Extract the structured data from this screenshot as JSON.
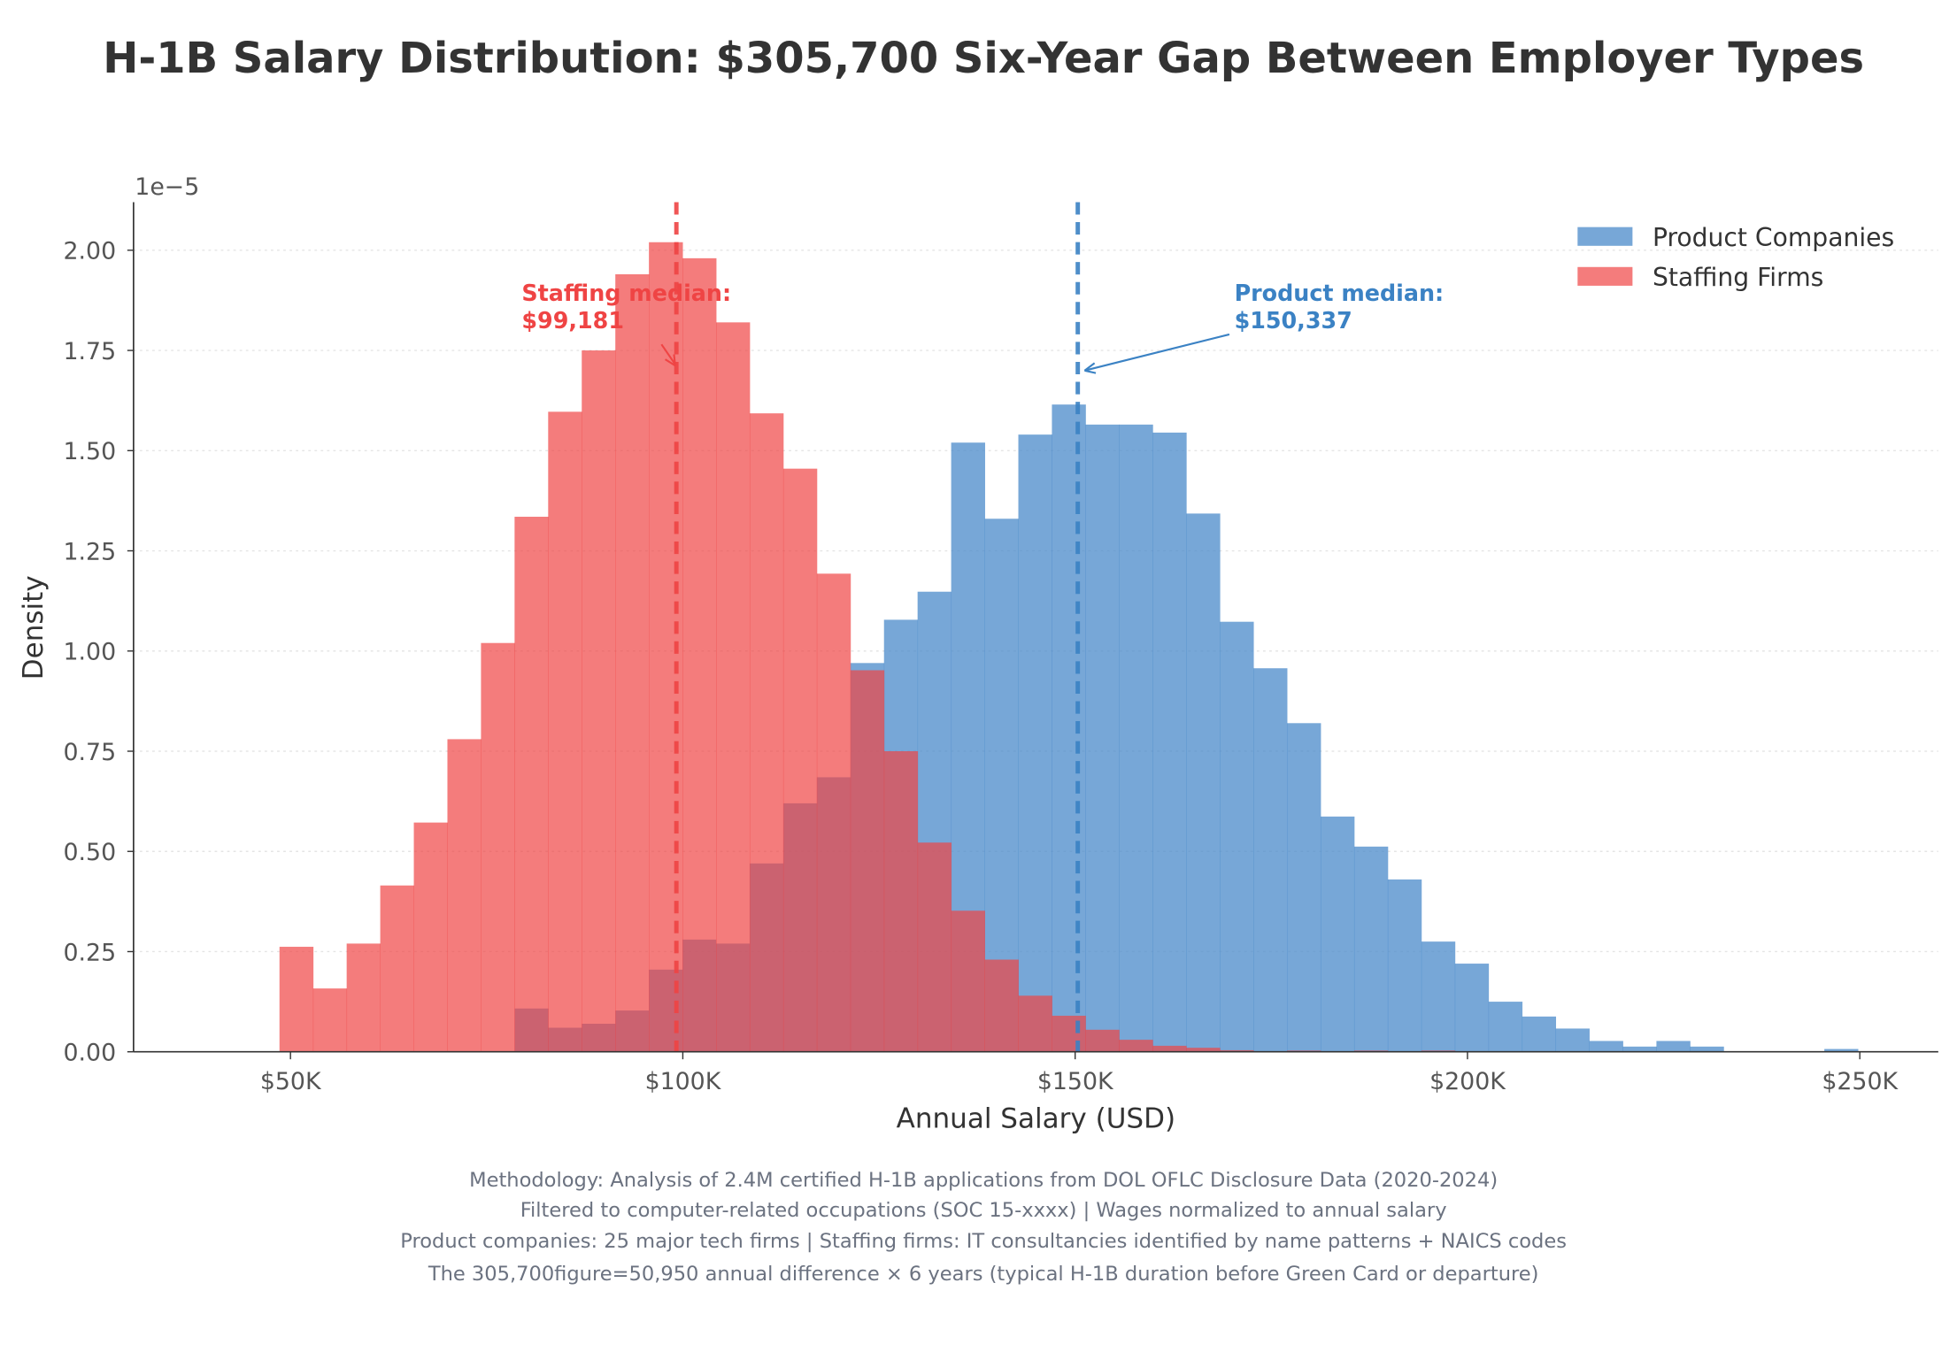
{
  "chart_data": {
    "type": "bar",
    "subtype": "overlapping-histogram",
    "title": "H-1B Salary Distribution: $305,700 Six-Year Gap Between Employer Types",
    "xlabel": "Annual Salary (USD)",
    "ylabel": "Density",
    "y_offset_label": "1e−5",
    "y_scale": 1e-05,
    "xlim": [
      30,
      260
    ],
    "ylim": [
      0,
      2.12
    ],
    "x_units": "thousand USD",
    "x_ticks": [
      50,
      100,
      150,
      200,
      250
    ],
    "x_tick_labels": [
      "$50K",
      "$100K",
      "$150K",
      "$200K",
      "$250K"
    ],
    "y_ticks": [
      0,
      0.25,
      0.5,
      0.75,
      1.0,
      1.25,
      1.5,
      1.75,
      2.0
    ],
    "y_tick_labels": [
      "0.00",
      "0.25",
      "0.50",
      "0.75",
      "1.00",
      "1.25",
      "1.50",
      "1.75",
      "2.00"
    ],
    "grid": "horizontal dotted",
    "legend_position": "top-right",
    "bin_start": 48.6,
    "bin_width": 4.28,
    "series": [
      {
        "name": "Product Companies",
        "color": "#4a8ac9",
        "start_bin": 7,
        "values": [
          0.108,
          0.06,
          0.07,
          0.103,
          0.205,
          0.28,
          0.27,
          0.47,
          0.62,
          0.685,
          0.97,
          1.078,
          1.148,
          1.52,
          1.33,
          1.54,
          1.615,
          1.565,
          1.565,
          1.545,
          1.343,
          1.073,
          0.957,
          0.82,
          0.587,
          0.512,
          0.43,
          0.275,
          0.22,
          0.125,
          0.088,
          0.058,
          0.027,
          0.013,
          0.027,
          0.013,
          0,
          0,
          0,
          0.007
        ]
      },
      {
        "name": "Staffing Firms",
        "color": "#ef4444",
        "start_bin": 0,
        "values": [
          0.262,
          0.158,
          0.27,
          0.415,
          0.572,
          0.78,
          1.02,
          1.335,
          1.597,
          1.75,
          1.94,
          2.02,
          1.98,
          1.82,
          1.593,
          1.455,
          1.193,
          0.952,
          0.75,
          0.522,
          0.352,
          0.23,
          0.14,
          0.09,
          0.055,
          0.03,
          0.015,
          0.01,
          0.004,
          0,
          0.003,
          0,
          0.003,
          0,
          0.003
        ]
      }
    ],
    "medians": [
      {
        "series": "Staffing Firms",
        "value": 99.181,
        "label_line1": "Staffing median:",
        "label_line2": "$99,181",
        "color": "#ef4444"
      },
      {
        "series": "Product Companies",
        "value": 150.337,
        "label_line1": "Product median:",
        "label_line2": "$150,337",
        "color": "#3b82c4"
      }
    ]
  },
  "footnotes": [
    "Methodology: Analysis of 2.4M certified H-1B applications from DOL OFLC Disclosure Data (2020-2024)",
    "Filtered to computer-related occupations (SOC 15-xxxx) | Wages normalized to annual salary",
    "Product companies: 25 major tech firms | Staffing firms: IT consultancies identified by name patterns + NAICS codes",
    "The 305,700figure=50,950 annual difference × 6 years (typical H-1B duration before Green Card or departure)"
  ]
}
